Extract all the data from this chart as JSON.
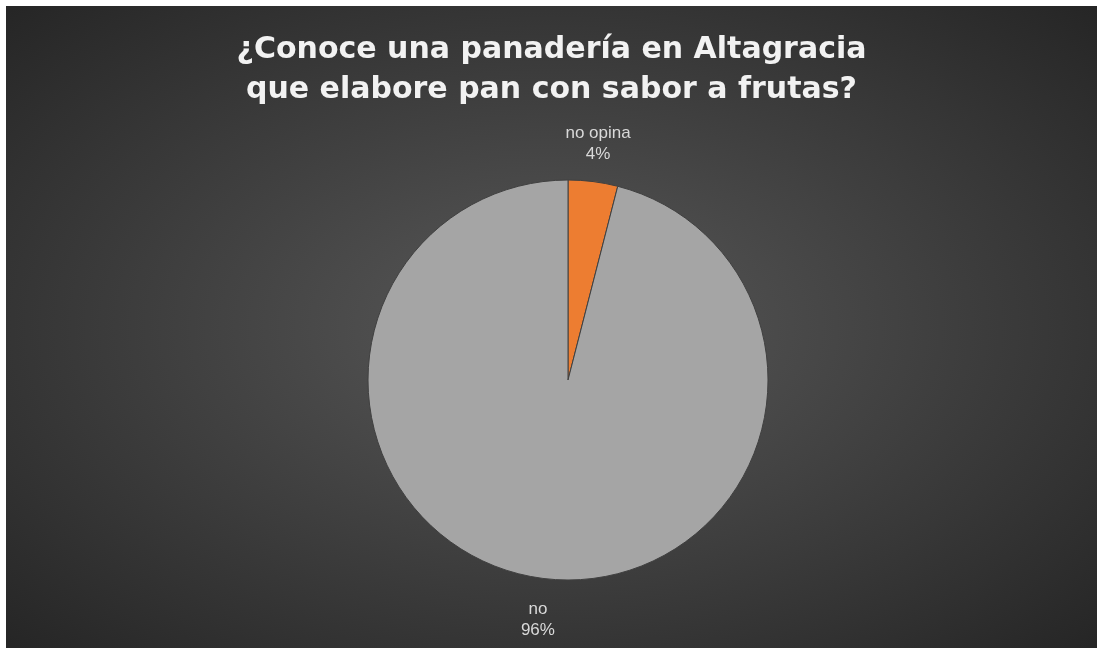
{
  "chart_data": {
    "type": "pie",
    "title": "¿Conoce una  panadería en Altagracia que elabore pan con sabor a frutas?",
    "categories": [
      "no opina",
      "no"
    ],
    "values": [
      4,
      96
    ],
    "colors": [
      "#ed7d31",
      "#a5a5a5"
    ],
    "value_labels": [
      "4%",
      "96%"
    ]
  }
}
